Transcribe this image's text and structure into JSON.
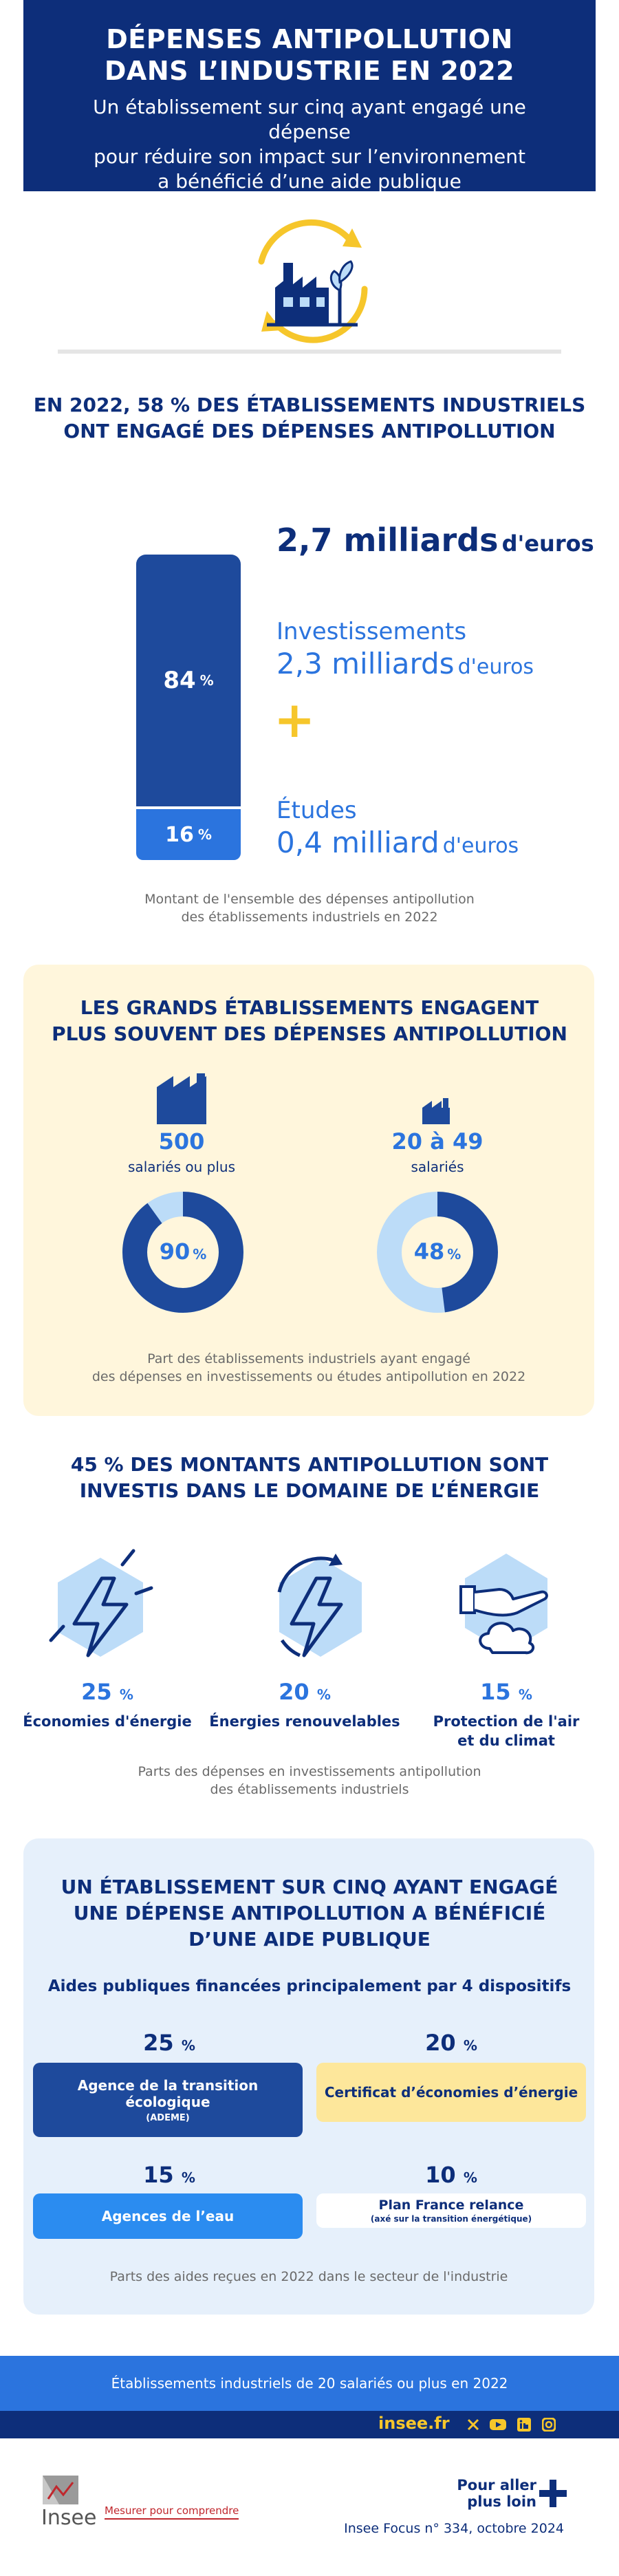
{
  "header": {
    "title_line1": "DÉPENSES ANTIPOLLUTION",
    "title_line2": "DANS L’INDUSTRIE EN 2022",
    "subtitle_line1": "Un établissement sur cinq ayant engagé une dépense",
    "subtitle_line2": "pour réduire son impact sur l’environnement",
    "subtitle_line3": "a bénéficié d’une aide publique"
  },
  "section1": {
    "title_line1": "EN 2022, 58 % DES ÉTABLISSEMENTS INDUSTRIELS",
    "title_line2": "ONT ENGAGÉ DES DÉPENSES ANTIPOLLUTION",
    "total_value": "2,7 milliards",
    "total_unit": "d'euros",
    "invest_label": "Investissements",
    "invest_value": "2,3 milliards",
    "invest_unit": "d'euros",
    "plus_sign": "+",
    "studies_label": "Études",
    "studies_value": "0,4 milliard",
    "studies_unit": "d'euros",
    "bar_top_value": "84",
    "bar_bottom_value": "16",
    "pct_sign": "%",
    "caption_line1": "Montant de l'ensemble des dépenses antipollution",
    "caption_line2": "des établissements industriels en 2022",
    "shares": {
      "investissements": 84,
      "etudes": 16
    }
  },
  "section2": {
    "title_line1": "LES GRANDS ÉTABLISSEMENTS ENGAGENT",
    "title_line2": "PLUS SOUVENT DES DÉPENSES ANTIPOLLUTION",
    "left": {
      "size": "500",
      "size_label": "salariés ou plus",
      "value": "90",
      "share": 90
    },
    "right": {
      "size": "20 à 49",
      "size_label": "salariés",
      "value": "48",
      "share": 48
    },
    "pct_sign": "%",
    "caption_line1": "Part des établissements industriels ayant engagé",
    "caption_line2": "des dépenses en investissements ou études antipollution en 2022",
    "colors": {
      "donut_fill": "#1e4a9c",
      "donut_track": "#bcdcf8"
    }
  },
  "section3": {
    "title_line1": "45 % DES MONTANTS ANTIPOLLUTION SONT",
    "title_line2": "INVESTIS DANS LE DOMAINE DE L’ÉNERGIE",
    "items": [
      {
        "value": "25",
        "label_line1": "Économies d'énergie",
        "label_line2": "",
        "icon": "lightning-icon"
      },
      {
        "value": "20",
        "label_line1": "Énergies renouvelables",
        "label_line2": "",
        "icon": "renewable-lightning-icon"
      },
      {
        "value": "15",
        "label_line1": "Protection de l'air",
        "label_line2": "et du climat",
        "icon": "hand-cloud-icon"
      }
    ],
    "pct_sign": "%",
    "caption_line1": "Parts des dépenses en investissements antipollution",
    "caption_line2": "des établissements industriels"
  },
  "section4": {
    "title_line1": "UN ÉTABLISSEMENT SUR CINQ AYANT ENGAGÉ",
    "title_line2": "UNE DÉPENSE ANTIPOLLUTION A BÉNÉFICIÉ",
    "title_line3": "D’UNE AIDE PUBLIQUE",
    "subtitle": "Aides publiques financées principalement par 4 dispositifs",
    "aids": [
      {
        "value": "25",
        "label": "Agence de la transition écologique",
        "sub": "(ADEME)"
      },
      {
        "value": "20",
        "label": "Certificat d’économies d’énergie",
        "sub": ""
      },
      {
        "value": "15",
        "label": "Agences de l’eau",
        "sub": ""
      },
      {
        "value": "10",
        "label": "Plan France relance",
        "sub": "(axé sur la transition énergétique)"
      }
    ],
    "pct_sign": "%",
    "caption": "Parts des aides reçues en 2022 dans le secteur de l'industrie"
  },
  "footer": {
    "scope": "Établissements industriels de 20 salariés ou plus en 2022",
    "site": "insee.fr",
    "logo_text": "Insee",
    "tagline": "Mesurer pour comprendre",
    "more_line1": "Pour aller",
    "more_line2": "plus loin",
    "reference": "Insee Focus n° 334, octobre 2024"
  },
  "colors": {
    "navy": "#0d2e7a",
    "blue": "#2b74de",
    "light_blue": "#bcdcf8",
    "yellow": "#f6c62b",
    "yellow_bg": "#fff6dc",
    "blue_bg": "#e6f0fb"
  }
}
